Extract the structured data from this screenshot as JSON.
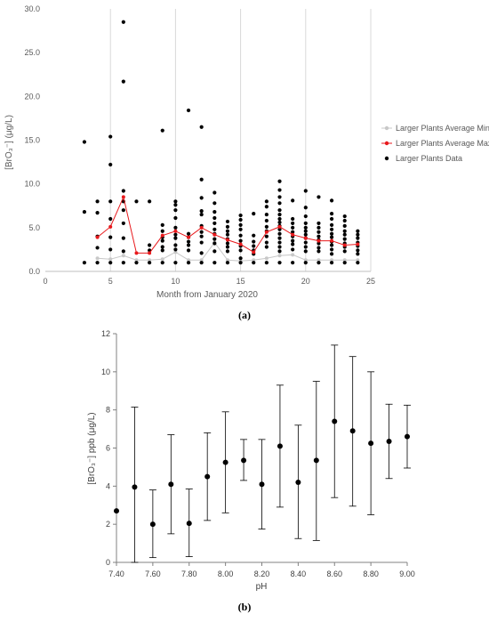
{
  "captions": {
    "a": "(a)",
    "b": "(b)"
  },
  "chart_data": [
    {
      "type": "scatter",
      "title": "",
      "xlabel": "Month from January 2020",
      "ylabel": "[BrO₃⁻] (μg/L)",
      "xlim": [
        0,
        25
      ],
      "ylim": [
        0,
        30
      ],
      "x_ticks": [
        "0",
        "5",
        "10",
        "15",
        "20",
        "25"
      ],
      "y_ticks": [
        "0.0",
        "5.0",
        "10.0",
        "15.0",
        "20.0",
        "25.0",
        "30.0"
      ],
      "grid": "vertical",
      "legend_position": "right",
      "colors": {
        "min": "#c8c8c8",
        "max": "#e8191c",
        "data": "#000000",
        "grid": "#d9d9d9",
        "axis": "#bfbfbf",
        "text": "#595959"
      },
      "series": [
        {
          "name": "Larger Plants Average Min.",
          "kind": "line",
          "x": [
            4,
            5,
            6,
            7,
            8,
            9,
            10,
            11,
            12,
            13,
            14,
            15,
            16,
            17,
            18,
            19,
            20,
            21,
            22,
            23,
            24
          ],
          "y": [
            1.5,
            1.4,
            1.8,
            1.3,
            1.3,
            1.4,
            2.2,
            1.3,
            1.3,
            3.3,
            1.3,
            1.2,
            1.3,
            1.5,
            1.8,
            1.9,
            1.3,
            1.3,
            1.3,
            1.3,
            1.3
          ]
        },
        {
          "name": "Larger Plants Average Max.",
          "kind": "line",
          "x": [
            4,
            5,
            6,
            7,
            8,
            9,
            10,
            11,
            12,
            13,
            14,
            15,
            16,
            17,
            18,
            19,
            20,
            21,
            22,
            23,
            24
          ],
          "y": [
            3.9,
            5.1,
            8.5,
            2.1,
            2.1,
            4.1,
            4.6,
            3.9,
            5.0,
            4.2,
            3.6,
            3.1,
            2.2,
            4.5,
            5.1,
            4.2,
            3.8,
            3.5,
            3.5,
            3.0,
            3.1
          ]
        },
        {
          "name": "Larger Plants Data",
          "kind": "scatter",
          "points": [
            [
              3,
              14.8
            ],
            [
              3,
              6.8
            ],
            [
              3,
              1.0
            ],
            [
              4,
              8.0
            ],
            [
              4,
              6.7
            ],
            [
              4,
              4.0
            ],
            [
              4,
              2.7
            ],
            [
              4,
              1.0
            ],
            [
              5,
              15.4
            ],
            [
              5,
              12.2
            ],
            [
              5,
              8.0
            ],
            [
              5,
              6.0
            ],
            [
              5,
              3.9
            ],
            [
              5,
              2.5
            ],
            [
              5,
              1.0
            ],
            [
              6,
              28.5
            ],
            [
              6,
              21.7
            ],
            [
              6,
              9.2
            ],
            [
              6,
              8.0
            ],
            [
              6,
              7.0
            ],
            [
              6,
              5.5
            ],
            [
              6,
              3.8
            ],
            [
              6,
              2.3
            ],
            [
              6,
              1.0
            ],
            [
              7,
              8.0
            ],
            [
              7,
              1.0
            ],
            [
              8,
              8.0
            ],
            [
              8,
              3.0
            ],
            [
              8,
              2.4
            ],
            [
              8,
              1.0
            ],
            [
              9,
              16.1
            ],
            [
              9,
              5.3
            ],
            [
              9,
              4.6
            ],
            [
              9,
              3.9
            ],
            [
              9,
              3.5
            ],
            [
              9,
              2.8
            ],
            [
              9,
              2.4
            ],
            [
              9,
              1.0
            ],
            [
              10,
              8.0
            ],
            [
              10,
              7.6
            ],
            [
              10,
              7.0
            ],
            [
              10,
              6.1
            ],
            [
              10,
              5.0
            ],
            [
              10,
              4.2
            ],
            [
              10,
              3.8
            ],
            [
              10,
              3.0
            ],
            [
              10,
              2.5
            ],
            [
              10,
              1.0
            ],
            [
              11,
              18.4
            ],
            [
              11,
              4.3
            ],
            [
              11,
              3.9
            ],
            [
              11,
              3.4
            ],
            [
              11,
              3.0
            ],
            [
              11,
              2.4
            ],
            [
              11,
              1.0
            ],
            [
              12,
              16.5
            ],
            [
              12,
              10.5
            ],
            [
              12,
              8.4
            ],
            [
              12,
              6.9
            ],
            [
              12,
              6.5
            ],
            [
              12,
              5.2
            ],
            [
              12,
              4.5
            ],
            [
              12,
              4.0
            ],
            [
              12,
              3.3
            ],
            [
              12,
              2.1
            ],
            [
              12,
              1.0
            ],
            [
              13,
              9.0
            ],
            [
              13,
              7.8
            ],
            [
              13,
              6.8
            ],
            [
              13,
              6.1
            ],
            [
              13,
              5.5
            ],
            [
              13,
              4.8
            ],
            [
              13,
              4.3
            ],
            [
              13,
              3.7
            ],
            [
              13,
              3.2
            ],
            [
              13,
              2.3
            ],
            [
              13,
              1.0
            ],
            [
              14,
              5.7
            ],
            [
              14,
              5.1
            ],
            [
              14,
              4.6
            ],
            [
              14,
              4.2
            ],
            [
              14,
              3.7
            ],
            [
              14,
              3.2
            ],
            [
              14,
              2.8
            ],
            [
              14,
              2.3
            ],
            [
              14,
              1.0
            ],
            [
              15,
              6.4
            ],
            [
              15,
              5.9
            ],
            [
              15,
              5.3
            ],
            [
              15,
              4.8
            ],
            [
              15,
              4.1
            ],
            [
              15,
              3.5
            ],
            [
              15,
              2.9
            ],
            [
              15,
              2.4
            ],
            [
              15,
              1.5
            ],
            [
              15,
              1.0
            ],
            [
              16,
              6.6
            ],
            [
              16,
              4.1
            ],
            [
              16,
              3.4
            ],
            [
              16,
              2.9
            ],
            [
              16,
              2.4
            ],
            [
              16,
              2.0
            ],
            [
              16,
              1.0
            ],
            [
              17,
              8.0
            ],
            [
              17,
              7.4
            ],
            [
              17,
              6.5
            ],
            [
              17,
              5.8
            ],
            [
              17,
              5.1
            ],
            [
              17,
              4.6
            ],
            [
              17,
              4.0
            ],
            [
              17,
              3.3
            ],
            [
              17,
              2.8
            ],
            [
              17,
              1.0
            ],
            [
              18,
              10.3
            ],
            [
              18,
              9.3
            ],
            [
              18,
              8.5
            ],
            [
              18,
              7.8
            ],
            [
              18,
              7.0
            ],
            [
              18,
              6.5
            ],
            [
              18,
              6.0
            ],
            [
              18,
              5.6
            ],
            [
              18,
              5.2
            ],
            [
              18,
              4.8
            ],
            [
              18,
              4.3
            ],
            [
              18,
              3.8
            ],
            [
              18,
              3.3
            ],
            [
              18,
              2.8
            ],
            [
              18,
              2.3
            ],
            [
              18,
              1.0
            ],
            [
              19,
              8.1
            ],
            [
              19,
              6.0
            ],
            [
              19,
              5.5
            ],
            [
              19,
              5.0
            ],
            [
              19,
              4.5
            ],
            [
              19,
              4.0
            ],
            [
              19,
              3.5
            ],
            [
              19,
              3.1
            ],
            [
              19,
              2.5
            ],
            [
              19,
              1.0
            ],
            [
              20,
              9.2
            ],
            [
              20,
              7.3
            ],
            [
              20,
              6.3
            ],
            [
              20,
              5.5
            ],
            [
              20,
              5.0
            ],
            [
              20,
              4.6
            ],
            [
              20,
              4.2
            ],
            [
              20,
              3.8
            ],
            [
              20,
              3.3
            ],
            [
              20,
              2.8
            ],
            [
              20,
              2.3
            ],
            [
              20,
              1.0
            ],
            [
              21,
              8.5
            ],
            [
              21,
              5.5
            ],
            [
              21,
              5.0
            ],
            [
              21,
              4.5
            ],
            [
              21,
              4.0
            ],
            [
              21,
              3.6
            ],
            [
              21,
              3.2
            ],
            [
              21,
              2.7
            ],
            [
              21,
              2.3
            ],
            [
              21,
              1.0
            ],
            [
              22,
              8.1
            ],
            [
              22,
              6.6
            ],
            [
              22,
              6.0
            ],
            [
              22,
              5.3
            ],
            [
              22,
              4.8
            ],
            [
              22,
              4.3
            ],
            [
              22,
              3.9
            ],
            [
              22,
              3.4
            ],
            [
              22,
              3.0
            ],
            [
              22,
              2.5
            ],
            [
              22,
              2.0
            ],
            [
              22,
              1.0
            ],
            [
              23,
              6.3
            ],
            [
              23,
              5.8
            ],
            [
              23,
              5.2
            ],
            [
              23,
              4.6
            ],
            [
              23,
              4.2
            ],
            [
              23,
              3.7
            ],
            [
              23,
              3.2
            ],
            [
              23,
              2.8
            ],
            [
              23,
              2.3
            ],
            [
              23,
              1.0
            ],
            [
              24,
              4.6
            ],
            [
              24,
              4.2
            ],
            [
              24,
              3.8
            ],
            [
              24,
              3.3
            ],
            [
              24,
              2.9
            ],
            [
              24,
              2.4
            ],
            [
              24,
              2.0
            ],
            [
              24,
              1.0
            ]
          ]
        }
      ]
    },
    {
      "type": "scatter",
      "title": "",
      "xlabel": "pH",
      "ylabel": "[BrO₃⁻] ppb  (μg/L)",
      "xlim": [
        7.4,
        9.0
      ],
      "ylim": [
        0,
        12
      ],
      "x_ticks": [
        "7.40",
        "7.60",
        "7.80",
        "8.00",
        "8.20",
        "8.40",
        "8.60",
        "8.80",
        "9.00"
      ],
      "y_ticks": [
        "0",
        "2",
        "4",
        "6",
        "8",
        "10",
        "12"
      ],
      "error_bars": true,
      "colors": {
        "points": "#000000",
        "axis": "#808080",
        "text": "#404040"
      },
      "series": [
        {
          "x": [
            7.4,
            7.5,
            7.6,
            7.7,
            7.8,
            7.9,
            8.0,
            8.1,
            8.2,
            8.3,
            8.4,
            8.5,
            8.6,
            8.7,
            8.8,
            8.9,
            9.0
          ],
          "y": [
            2.7,
            3.95,
            2.0,
            4.1,
            2.05,
            4.5,
            5.25,
            5.35,
            4.1,
            6.1,
            4.2,
            5.35,
            7.4,
            6.9,
            6.25,
            6.35,
            6.6
          ],
          "lower": [
            2.7,
            0.0,
            0.25,
            1.5,
            0.3,
            2.2,
            2.6,
            4.3,
            1.75,
            2.9,
            1.25,
            1.15,
            3.4,
            2.95,
            2.5,
            4.4,
            4.95
          ],
          "upper": [
            2.7,
            8.15,
            3.8,
            6.7,
            3.85,
            6.8,
            7.9,
            6.45,
            6.45,
            9.3,
            7.2,
            9.5,
            11.4,
            10.8,
            10.0,
            8.3,
            8.25
          ]
        }
      ]
    }
  ]
}
